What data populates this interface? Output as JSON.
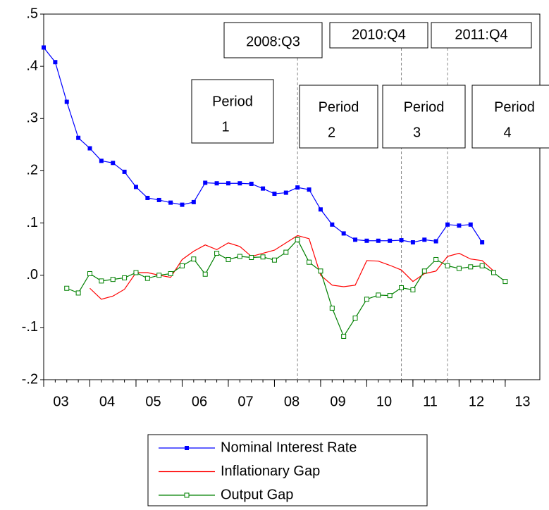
{
  "chart_data": {
    "type": "line",
    "x": [
      2003,
      2003.25,
      2003.5,
      2003.75,
      2004,
      2004.25,
      2004.5,
      2004.75,
      2005,
      2005.25,
      2005.5,
      2005.75,
      2006,
      2006.25,
      2006.5,
      2006.75,
      2007,
      2007.25,
      2007.5,
      2007.75,
      2008,
      2008.25,
      2008.5,
      2008.75,
      2009,
      2009.25,
      2009.5,
      2009.75,
      2010,
      2010.25,
      2010.5,
      2010.75,
      2011,
      2011.25,
      2011.5,
      2011.75,
      2012,
      2012.25,
      2012.5,
      2012.75,
      2013
    ],
    "series": [
      {
        "name": "Nominal Interest Rate",
        "color": "#0000ff",
        "marker": "filled-square",
        "values": [
          0.436,
          0.408,
          0.332,
          0.263,
          0.243,
          0.219,
          0.215,
          0.198,
          0.169,
          0.148,
          0.144,
          0.139,
          0.135,
          0.14,
          0.177,
          0.176,
          0.176,
          0.176,
          0.175,
          0.166,
          0.156,
          0.158,
          0.168,
          0.164,
          0.126,
          0.097,
          0.08,
          0.068,
          0.066,
          0.066,
          0.066,
          0.067,
          0.063,
          0.068,
          0.065,
          0.097,
          0.095,
          0.097,
          0.063,
          null,
          null
        ]
      },
      {
        "name": "Inflationary Gap",
        "color": "#ff0000",
        "marker": "none",
        "values": [
          null,
          null,
          null,
          null,
          -0.025,
          -0.046,
          -0.04,
          -0.027,
          0.005,
          0.005,
          0,
          -0.004,
          0.03,
          0.046,
          0.058,
          0.049,
          0.062,
          0.055,
          0.036,
          0.042,
          0.048,
          0.062,
          0.076,
          0.07,
          0,
          -0.019,
          -0.022,
          -0.019,
          0.028,
          0.027,
          0.019,
          0.01,
          -0.012,
          0.003,
          0.008,
          0.036,
          0.042,
          0.031,
          0.028,
          0.008,
          null
        ]
      },
      {
        "name": "Output Gap",
        "color": "#008000",
        "marker": "hollow-square",
        "values": [
          null,
          null,
          -0.025,
          -0.034,
          0.003,
          -0.011,
          -0.008,
          -0.005,
          0.005,
          -0.006,
          0,
          0.003,
          0.018,
          0.031,
          0.002,
          0.042,
          0.03,
          0.036,
          0.034,
          0.035,
          0.029,
          0.044,
          0.068,
          0.025,
          0.008,
          -0.063,
          -0.117,
          -0.082,
          -0.046,
          -0.038,
          -0.039,
          -0.024,
          -0.028,
          0.008,
          0.03,
          0.018,
          0.013,
          0.016,
          0.018,
          0.005,
          -0.012
        ]
      }
    ],
    "xlim": [
      2003,
      2013.75
    ],
    "xticks": [
      {
        "value": 2003,
        "label": "03"
      },
      {
        "value": 2004,
        "label": "04"
      },
      {
        "value": 2005,
        "label": "05"
      },
      {
        "value": 2006,
        "label": "06"
      },
      {
        "value": 2007,
        "label": "07"
      },
      {
        "value": 2008,
        "label": "08"
      },
      {
        "value": 2009,
        "label": "09"
      },
      {
        "value": 2010,
        "label": "10"
      },
      {
        "value": 2011,
        "label": "11"
      },
      {
        "value": 2012,
        "label": "12"
      },
      {
        "value": 2013,
        "label": "13"
      }
    ],
    "ylim": [
      -0.2,
      0.5
    ],
    "yticks": [
      {
        "value": -0.2,
        "label": "-.2"
      },
      {
        "value": -0.1,
        "label": "-.1"
      },
      {
        "value": 0,
        "label": ".0"
      },
      {
        "value": 0.1,
        "label": ".1"
      },
      {
        "value": 0.2,
        "label": ".2"
      },
      {
        "value": 0.3,
        "label": ".3"
      },
      {
        "value": 0.4,
        "label": ".4"
      },
      {
        "value": 0.5,
        "label": ".5"
      }
    ],
    "annotations": [
      {
        "x": 2008.5,
        "label": "2008:Q3"
      },
      {
        "x": 2010.75,
        "label": "2010:Q4"
      },
      {
        "x": 2011.75,
        "label": "2011:Q4"
      }
    ],
    "periods": [
      [
        "Period",
        "1"
      ],
      [
        "Period",
        "2"
      ],
      [
        "Period",
        "3"
      ],
      [
        "Period",
        "4"
      ]
    ],
    "legend": "bottom"
  }
}
